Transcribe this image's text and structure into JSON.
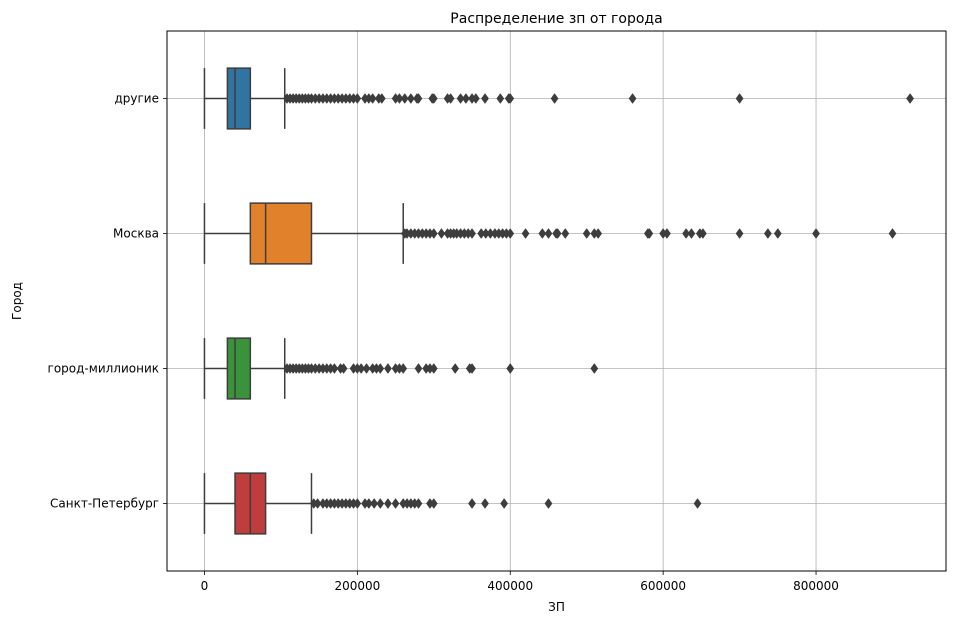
{
  "chart_data": {
    "type": "box",
    "orientation": "horizontal",
    "title": "Распределение зп от города",
    "xlabel": "ЗП",
    "ylabel": "Город",
    "xlim": [
      -49000,
      970000
    ],
    "xticks": [
      0,
      200000,
      400000,
      600000,
      800000
    ],
    "xtick_labels": [
      "0",
      "200000",
      "400000",
      "600000",
      "800000"
    ],
    "grid": true,
    "legend": "none",
    "categories": [
      "другие",
      "Москва",
      "город-миллионик",
      "Санкт-Петербург"
    ],
    "boxes": [
      {
        "category": "другие",
        "color": "#3274a1",
        "whisker_low": 0,
        "q1": 30000,
        "median": 40000,
        "q3": 60000,
        "whisker_high": 105000,
        "outliers": [
          108000,
          112000,
          116000,
          120000,
          124000,
          128000,
          132000,
          136000,
          140000,
          145000,
          150000,
          155000,
          160000,
          165000,
          170000,
          175000,
          180000,
          185000,
          190000,
          195000,
          200000,
          210000,
          215000,
          220000,
          228000,
          232000,
          250000,
          255000,
          262000,
          270000,
          278000,
          280000,
          298000,
          300000,
          318000,
          322000,
          335000,
          342000,
          350000,
          355000,
          367000,
          387000,
          398000,
          400000,
          458000,
          560000,
          700000,
          923000
        ]
      },
      {
        "category": "Москва",
        "color": "#e1812c",
        "whisker_low": 0,
        "q1": 60000,
        "median": 80000,
        "q3": 140000,
        "whisker_high": 260000,
        "outliers": [
          262000,
          265000,
          270000,
          275000,
          280000,
          285000,
          290000,
          295000,
          300000,
          310000,
          318000,
          322000,
          326000,
          330000,
          335000,
          340000,
          345000,
          350000,
          362000,
          368000,
          374000,
          380000,
          385000,
          390000,
          395000,
          400000,
          420000,
          442000,
          450000,
          460000,
          462000,
          472000,
          500000,
          510000,
          515000,
          580000,
          582000,
          600000,
          605000,
          630000,
          637000,
          648000,
          652000,
          700000,
          737000,
          750000,
          800000,
          900000
        ]
      },
      {
        "category": "город-миллионик",
        "color": "#3a923a",
        "whisker_low": 0,
        "q1": 30000,
        "median": 40000,
        "q3": 60000,
        "whisker_high": 105000,
        "outliers": [
          108000,
          112000,
          116000,
          120000,
          124000,
          128000,
          132000,
          136000,
          140000,
          145000,
          150000,
          155000,
          160000,
          165000,
          170000,
          178000,
          182000,
          195000,
          200000,
          205000,
          212000,
          220000,
          225000,
          230000,
          240000,
          250000,
          255000,
          260000,
          280000,
          290000,
          295000,
          300000,
          328000,
          347000,
          350000,
          400000,
          510000
        ]
      },
      {
        "category": "Санкт-Петербург",
        "color": "#c03d3e",
        "whisker_low": 0,
        "q1": 40000,
        "median": 60000,
        "q3": 80000,
        "whisker_high": 140000,
        "outliers": [
          143000,
          148000,
          155000,
          160000,
          165000,
          170000,
          175000,
          180000,
          185000,
          190000,
          195000,
          200000,
          210000,
          215000,
          222000,
          230000,
          240000,
          250000,
          260000,
          265000,
          270000,
          275000,
          280000,
          295000,
          300000,
          350000,
          367000,
          392000,
          450000,
          645000
        ]
      }
    ]
  }
}
